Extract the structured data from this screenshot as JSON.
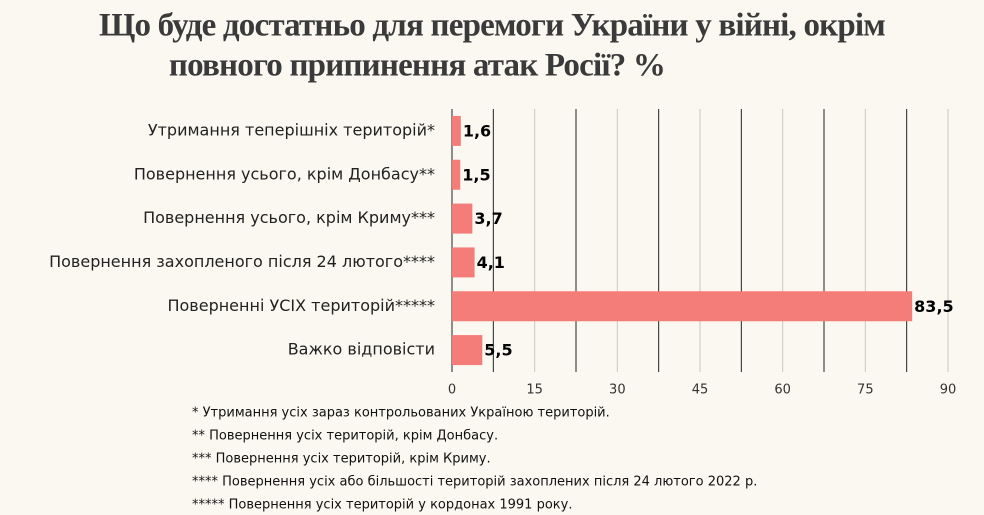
{
  "chart_data": {
    "type": "hbar",
    "title": [
      "Що буде достатньо для перемоги України у війні, окрім",
      "повного припинення атак Росії? %"
    ],
    "categories": [
      "Утримання теперішніх територій*",
      "Повернення усього, крім Донбасу**",
      "Повернення усього, крім Криму***",
      "Повернення захопленого після 24 лютого****",
      "Поверненні УСІХ територій*****",
      "Важко відповісти"
    ],
    "values": [
      1.6,
      1.5,
      3.7,
      4.1,
      83.5,
      5.5
    ],
    "value_labels": [
      "1,6",
      "1,5",
      "3,7",
      "4,1",
      "83,5",
      "5,5"
    ],
    "color": "#f47c79",
    "xlim": [
      0,
      90
    ],
    "xticks": [
      0,
      15,
      30,
      45,
      60,
      75,
      90
    ],
    "grid": true,
    "grid_color": "#c9c6bc",
    "minor_grid": [
      7.5,
      22.5,
      37.5,
      52.5,
      67.5,
      82.5
    ],
    "minor_grid_color": "#222222",
    "notes": [
      "* Утримання усіх зараз контрольованих Україною територій.",
      "** Повернення усіх територій, крім Донбасу.",
      "*** Повернення усіх територій, крім Криму.",
      "**** Повернення усіх або більшості територій захоплених після 24 лютого 2022 р.",
      "***** Повернення усіх територій у кордонах 1991 року."
    ]
  }
}
